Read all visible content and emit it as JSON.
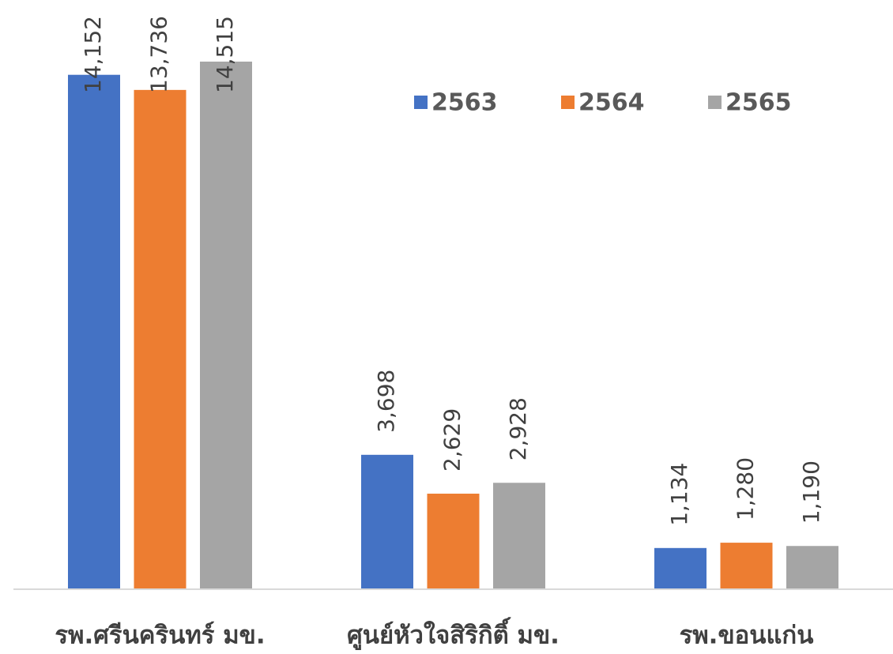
{
  "chart_data": {
    "type": "bar",
    "categories": [
      "รพ.ศรีนครินทร์ มข.",
      "ศูนย์หัวใจสิริกิติ์ มข.",
      "รพ.ขอนแก่น"
    ],
    "series": [
      {
        "name": "2563",
        "color": "#4472c4",
        "values": [
          14152,
          3698,
          1134
        ],
        "value_labels": [
          "14,152",
          "3,698",
          "1,134"
        ]
      },
      {
        "name": "2564",
        "color": "#ed7d31",
        "values": [
          13736,
          2629,
          1280
        ],
        "value_labels": [
          "13,736",
          "2,629",
          "1,280"
        ]
      },
      {
        "name": "2565",
        "color": "#a5a5a5",
        "values": [
          14515,
          2928,
          1190
        ],
        "value_labels": [
          "14,515",
          "2,928",
          "1,190"
        ]
      }
    ],
    "legend": "top-right"
  }
}
